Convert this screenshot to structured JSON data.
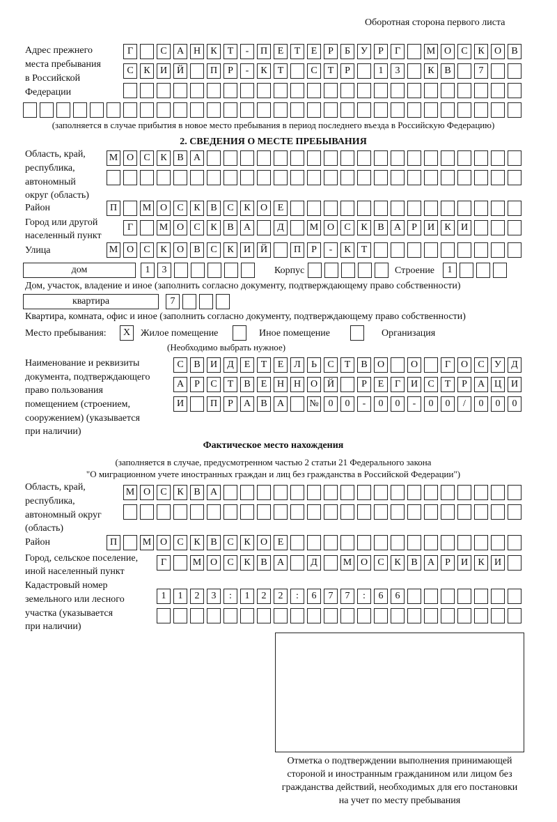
{
  "header": "Оборотная сторона первого листа",
  "prev_address": {
    "label": "Адрес прежнего места пребывания в Российской Федерации",
    "label_lines": [
      "Адрес прежнего",
      "места пребывания",
      "в Российской",
      "Федерации"
    ],
    "rows": [
      [
        "Г",
        "",
        "С",
        "А",
        "Н",
        "К",
        "Т",
        "-",
        "П",
        "Е",
        "Т",
        "Е",
        "Р",
        "Б",
        "У",
        "Р",
        "Г",
        "",
        "М",
        "О",
        "С",
        "К",
        "О",
        "В"
      ],
      [
        "С",
        "К",
        "И",
        "Й",
        "",
        "П",
        "Р",
        "-",
        "К",
        "Т",
        "",
        "С",
        "Т",
        "Р",
        "",
        "1",
        "3",
        "",
        "К",
        "В",
        "",
        "7",
        "",
        ""
      ],
      [
        "",
        "",
        "",
        "",
        "",
        "",
        "",
        "",
        "",
        "",
        "",
        "",
        "",
        "",
        "",
        "",
        "",
        "",
        "",
        "",
        "",
        "",
        "",
        ""
      ],
      [
        "",
        "",
        "",
        "",
        "",
        "",
        "",
        "",
        "",
        "",
        "",
        "",
        "",
        "",
        "",
        "",
        "",
        "",
        "",
        "",
        "",
        "",
        "",
        "",
        "",
        "",
        "",
        "",
        "",
        ""
      ]
    ],
    "note": "(заполняется в случае прибытия в новое место пребывания в период последнего въезда в Российскую Федерацию)"
  },
  "section2": {
    "title": "2. СВЕДЕНИЯ О МЕСТЕ ПРЕБЫВАНИЯ",
    "region_label_lines": [
      "Область, край,",
      "республика,",
      "автономный",
      "округ (область)"
    ],
    "region_rows": [
      [
        "М",
        "О",
        "С",
        "К",
        "В",
        "А",
        "",
        "",
        "",
        "",
        "",
        "",
        "",
        "",
        "",
        "",
        "",
        "",
        "",
        "",
        "",
        "",
        "",
        "",
        ""
      ],
      [
        "",
        "",
        "",
        "",
        "",
        "",
        "",
        "",
        "",
        "",
        "",
        "",
        "",
        "",
        "",
        "",
        "",
        "",
        "",
        "",
        "",
        "",
        "",
        "",
        ""
      ]
    ],
    "district_label": "Район",
    "district_row": [
      "П",
      "",
      "М",
      "О",
      "С",
      "К",
      "В",
      "С",
      "К",
      "О",
      "Е",
      "",
      "",
      "",
      "",
      "",
      "",
      "",
      "",
      "",
      "",
      "",
      "",
      "",
      ""
    ],
    "city_label_lines": [
      "Город или другой",
      "населенный пункт"
    ],
    "city_row": [
      "Г",
      "",
      "М",
      "О",
      "С",
      "К",
      "В",
      "А",
      "",
      "Д",
      "",
      "М",
      "О",
      "С",
      "К",
      "В",
      "А",
      "Р",
      "И",
      "К",
      "И",
      "",
      "",
      ""
    ],
    "street_label": "Улица",
    "street_row": [
      "М",
      "О",
      "С",
      "К",
      "О",
      "В",
      "С",
      "К",
      "И",
      "Й",
      "",
      "П",
      "Р",
      "-",
      "К",
      "Т",
      "",
      "",
      "",
      "",
      "",
      "",
      "",
      "",
      ""
    ],
    "house_type": "дом",
    "house_cells": [
      "1",
      "3",
      "",
      "",
      "",
      "",
      ""
    ],
    "korpus_label": "Корпус",
    "korpus_cells": [
      "",
      "",
      "",
      "",
      ""
    ],
    "building_label": "Строение",
    "building_cells": [
      "1",
      "",
      "",
      ""
    ],
    "house_note": "Дом, участок, владение и иное (заполнить согласно документу, подтверждающему право собственности)",
    "apt_type": "квартира",
    "apt_cells": [
      "7",
      "",
      "",
      ""
    ],
    "apt_note": "Квартира, комната, офис и иное (заполнить согласно документу, подтверждающему право собственности)",
    "stay_label": "Место пребывания:",
    "stay_options": [
      {
        "label": "Жилое помещение",
        "mark": "X"
      },
      {
        "label": "Иное помещение",
        "mark": ""
      },
      {
        "label": "Организация",
        "mark": ""
      }
    ],
    "stay_note": "(Необходимо выбрать нужное)",
    "doc_label_lines": [
      "Наименование и реквизиты",
      "документа, подтверждающего",
      "право пользования",
      "помещением (строением,",
      "сооружением) (указывается",
      "при наличии)"
    ],
    "doc_rows": [
      [
        "С",
        "В",
        "И",
        "Д",
        "Е",
        "Т",
        "Е",
        "Л",
        "Ь",
        "С",
        "Т",
        "В",
        "О",
        "",
        "О",
        "",
        "Г",
        "О",
        "С",
        "У",
        "Д"
      ],
      [
        "А",
        "Р",
        "С",
        "Т",
        "В",
        "Е",
        "Н",
        "Н",
        "О",
        "Й",
        "",
        "Р",
        "Е",
        "Г",
        "И",
        "С",
        "Т",
        "Р",
        "А",
        "Ц",
        "И"
      ],
      [
        "И",
        "",
        "П",
        "Р",
        "А",
        "В",
        "А",
        "",
        "№",
        "0",
        "0",
        "-",
        "0",
        "0",
        "-",
        "0",
        "0",
        "/",
        "0",
        "0",
        "0"
      ]
    ]
  },
  "actual": {
    "title": "Фактическое место нахождения",
    "note_lines": [
      "(заполняется в случае, предусмотренном частью 2 статьи 21 Федерального закона",
      "\"О миграционном учете иностранных граждан и лиц без гражданства в Российской Федерации\")"
    ],
    "region_label_lines": [
      "Область, край,",
      "республика,",
      "автономный округ",
      "(область)"
    ],
    "region_rows": [
      [
        "М",
        "О",
        "С",
        "К",
        "В",
        "А",
        "",
        "",
        "",
        "",
        "",
        "",
        "",
        "",
        "",
        "",
        "",
        "",
        "",
        "",
        "",
        "",
        "",
        ""
      ],
      [
        "",
        "",
        "",
        "",
        "",
        "",
        "",
        "",
        "",
        "",
        "",
        "",
        "",
        "",
        "",
        "",
        "",
        "",
        "",
        "",
        "",
        "",
        "",
        ""
      ]
    ],
    "district_label": "Район",
    "district_row": [
      "П",
      "",
      "М",
      "О",
      "С",
      "К",
      "В",
      "С",
      "К",
      "О",
      "Е",
      "",
      "",
      "",
      "",
      "",
      "",
      "",
      "",
      "",
      "",
      "",
      "",
      "",
      ""
    ],
    "city_label_lines": [
      "Город, сельское поселение,",
      "иной населенный пункт"
    ],
    "city_row": [
      "Г",
      "",
      "М",
      "О",
      "С",
      "К",
      "В",
      "А",
      "",
      "Д",
      "",
      "М",
      "О",
      "С",
      "К",
      "В",
      "А",
      "Р",
      "И",
      "К",
      "И",
      ""
    ],
    "cadastral_label_lines": [
      "Кадастровый номер",
      "земельного или лесного",
      "участка (указывается",
      "при наличии)"
    ],
    "cadastral_rows": [
      [
        "1",
        "1",
        "2",
        "3",
        ":",
        "1",
        "2",
        "2",
        ":",
        "6",
        "7",
        "7",
        ":",
        "6",
        "6",
        "",
        "",
        "",
        "",
        "",
        "",
        ""
      ],
      [
        "",
        "",
        "",
        "",
        "",
        "",
        "",
        "",
        "",
        "",
        "",
        "",
        "",
        "",
        "",
        "",
        "",
        "",
        "",
        "",
        "",
        ""
      ]
    ]
  },
  "stamp_box": {
    "caption_lines": [
      "Отметка о подтверждении выполнения принимающей",
      "стороной и иностранным гражданином или лицом без",
      "гражданства действий, необходимых для его постановки",
      "на учет по месту пребывания"
    ]
  }
}
